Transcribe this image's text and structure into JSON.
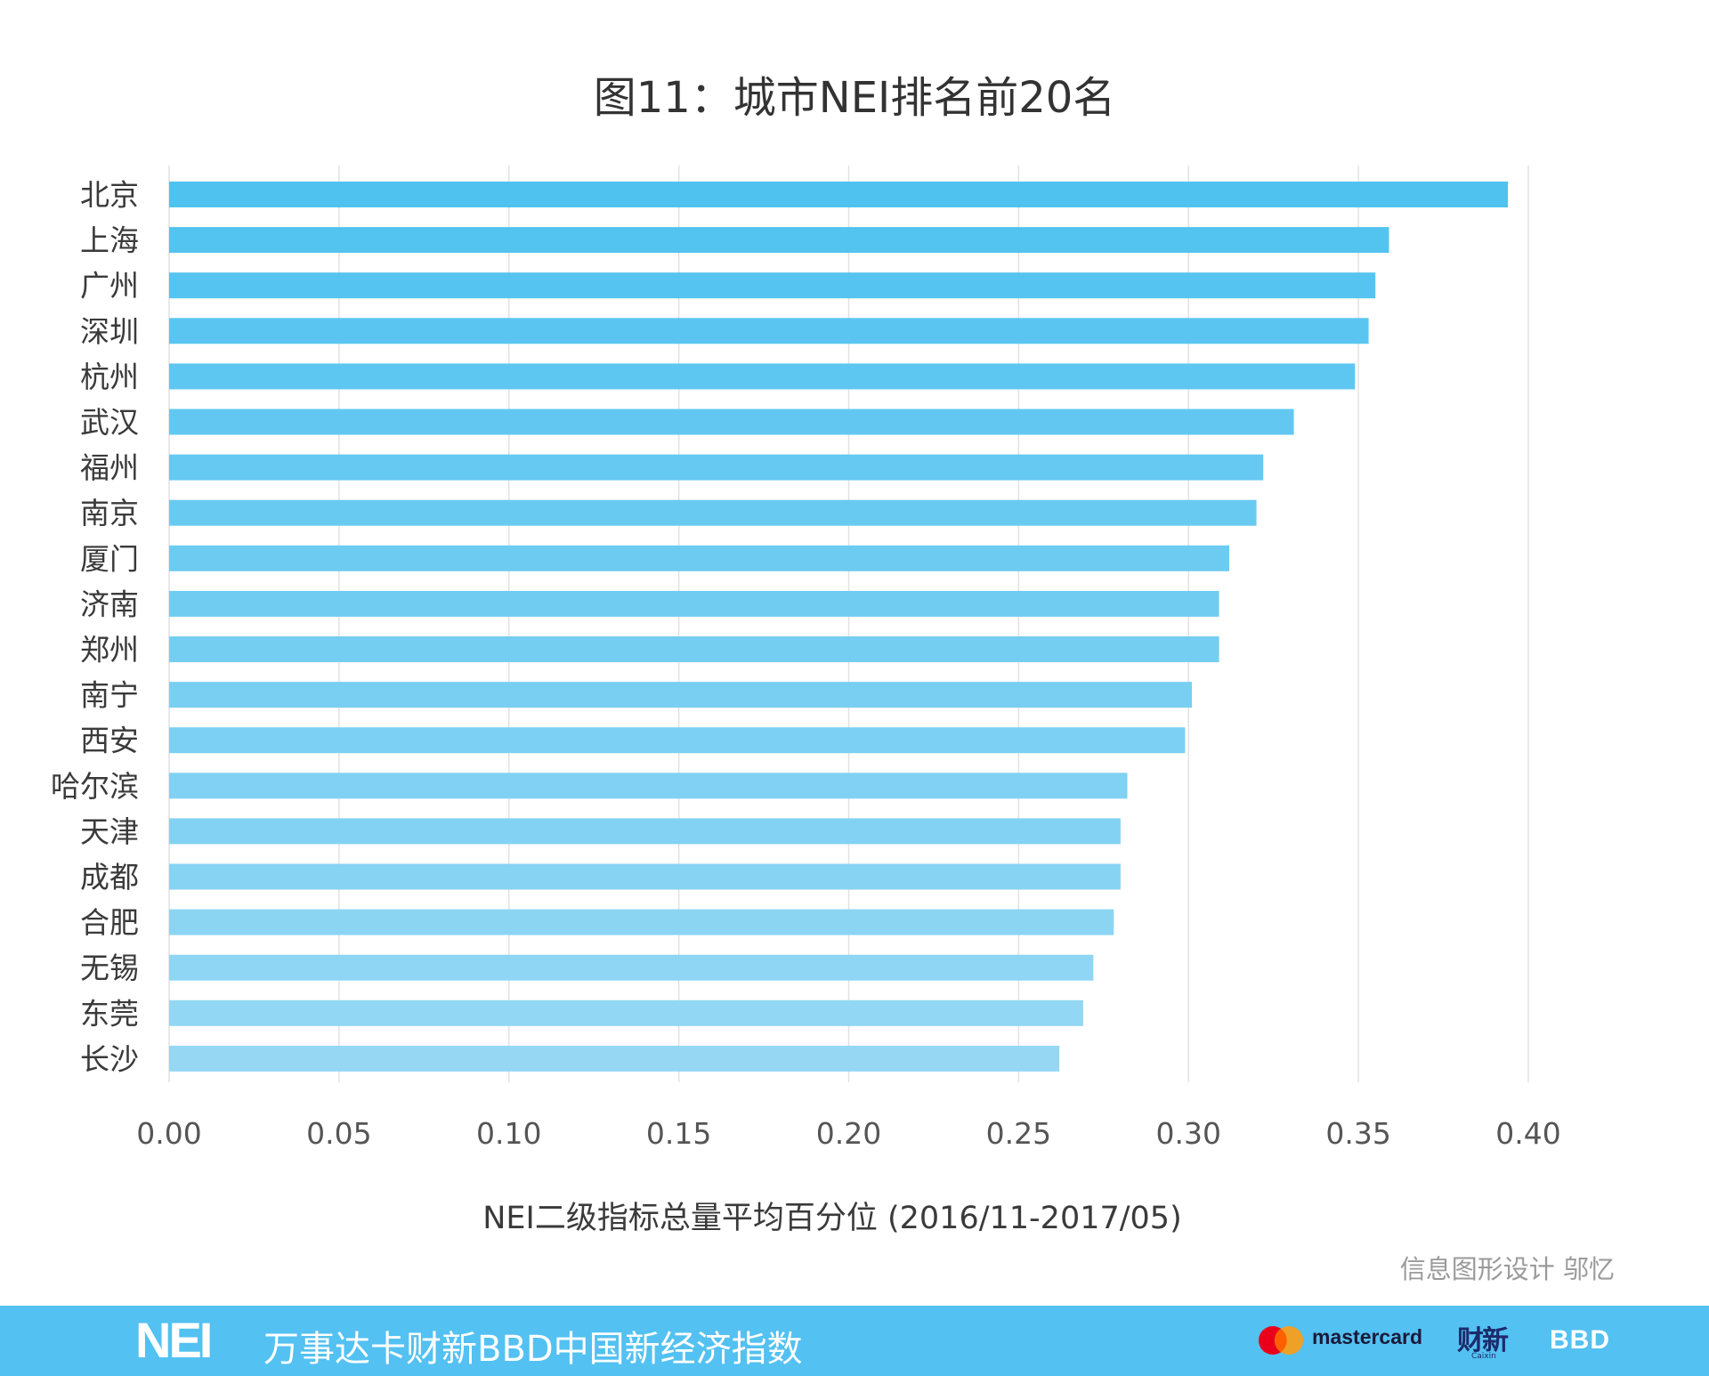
{
  "chart_data": {
    "type": "bar",
    "orientation": "horizontal",
    "title": "图11：城市NEI排名前20名",
    "xlabel": "NEI二级指标总量平均百分位 (2016/11-2017/05)",
    "ylabel": "",
    "xlim": [
      0,
      0.4
    ],
    "xticks": [
      "0.00",
      "0.05",
      "0.10",
      "0.15",
      "0.20",
      "0.25",
      "0.30",
      "0.35",
      "0.40"
    ],
    "grid": "vertical",
    "categories": [
      "北京",
      "上海",
      "广州",
      "深圳",
      "杭州",
      "武汉",
      "福州",
      "南京",
      "厦门",
      "济南",
      "郑州",
      "南宁",
      "西安",
      "哈尔滨",
      "天津",
      "成都",
      "合肥",
      "无锡",
      "东莞",
      "长沙"
    ],
    "values": [
      0.394,
      0.359,
      0.355,
      0.353,
      0.349,
      0.331,
      0.322,
      0.32,
      0.312,
      0.309,
      0.309,
      0.301,
      0.299,
      0.282,
      0.28,
      0.28,
      0.278,
      0.272,
      0.269,
      0.262
    ],
    "bar_color_top": "#4fc2f0",
    "bar_color_bottom": "#96d8f4"
  },
  "credit": "信息图形设计 邬忆",
  "footer": {
    "logo": "NEI",
    "title": "万事达卡财新BBD中国新经济指数",
    "mastercard": "mastercard",
    "caixin": "财新",
    "caixin_sub": "Caixin",
    "bbd": "BBD",
    "background": "#53c1f1"
  }
}
